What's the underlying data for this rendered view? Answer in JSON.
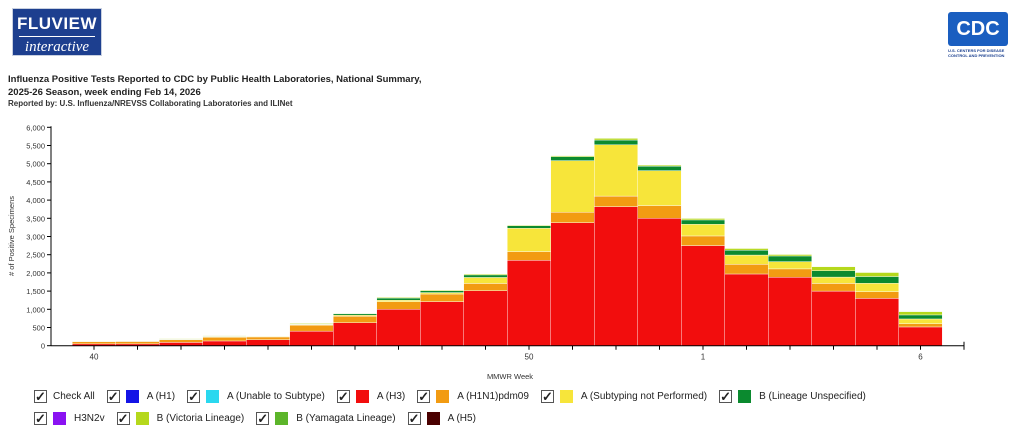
{
  "header": {
    "logo_text": "FLUVIEW interactive",
    "cdc_logo_text": "CDC",
    "cdc_subtext": "U.S. CENTERS FOR DISEASE CONTROL AND PREVENTION",
    "title_line1": "Influenza Positive Tests Reported to CDC by Public Health Laboratories, National Summary,",
    "title_line2": "2025-26 Season, week ending Feb 14, 2026",
    "subtitle": "Reported by: U.S. Influenza/NREVSS Collaborating Laboratories and ILINet"
  },
  "legend": {
    "check_all": "Check All",
    "items": [
      {
        "label": "A (H1)",
        "color": "#1414e6"
      },
      {
        "label": "A (Unable to Subtype)",
        "color": "#2ad8ef"
      },
      {
        "label": "A (H3)",
        "color": "#f20d0d"
      },
      {
        "label": "A (H1N1)pdm09",
        "color": "#f29b12"
      },
      {
        "label": "A (Subtyping not Performed)",
        "color": "#f7e53a"
      },
      {
        "label": "B (Lineage Unspecified)",
        "color": "#0b8a2f"
      },
      {
        "label": "H3N2v",
        "color": "#8a12f2"
      },
      {
        "label": "B (Victoria Lineage)",
        "color": "#b5d81c"
      },
      {
        "label": "B (Yamagata Lineage)",
        "color": "#5cb52a"
      },
      {
        "label": "A (H5)",
        "color": "#4a0000"
      }
    ]
  },
  "chart_data": {
    "type": "bar",
    "stacked": true,
    "xlabel": "MMWR Week",
    "ylabel": "# of Positive Specimens",
    "ylim": [
      0,
      6000
    ],
    "yticks": [
      0,
      500,
      1000,
      1500,
      2000,
      2500,
      3000,
      3500,
      4000,
      4500,
      5000,
      5500,
      6000
    ],
    "ytick_labels": [
      "0",
      "500",
      "1,000",
      "1,500",
      "2,000",
      "2,500",
      "3,000",
      "3,500",
      "4,000",
      "4,500",
      "5,000",
      "5,500",
      "6,000"
    ],
    "xtick_labels_shown": [
      "40",
      "50",
      "1",
      "6"
    ],
    "categories": [
      "40",
      "41",
      "42",
      "43",
      "44",
      "45",
      "46",
      "47",
      "48",
      "49",
      "50",
      "51",
      "52",
      "53",
      "1",
      "2",
      "3",
      "4",
      "5",
      "6"
    ],
    "series": [
      {
        "name": "A (H3)",
        "color": "#f20d0d",
        "values": [
          50,
          50,
          90,
          130,
          165,
          400,
          630,
          1000,
          1210,
          1510,
          2345,
          3380,
          3820,
          3500,
          2750,
          1970,
          1880,
          1500,
          1300,
          515
        ]
      },
      {
        "name": "A (H1N1)pdm09",
        "color": "#f29b12",
        "values": [
          60,
          65,
          75,
          100,
          75,
          165,
          180,
          210,
          210,
          200,
          240,
          285,
          290,
          350,
          265,
          265,
          230,
          210,
          185,
          90
        ]
      },
      {
        "name": "A (Subtyping not Performed)",
        "color": "#f7e53a",
        "values": [
          15,
          10,
          15,
          20,
          15,
          15,
          30,
          40,
          40,
          165,
          640,
          1420,
          1410,
          960,
          320,
          255,
          200,
          175,
          230,
          130
        ]
      },
      {
        "name": "B (Lineage Unspecified)",
        "color": "#0b8a2f",
        "values": [
          5,
          5,
          10,
          10,
          10,
          10,
          40,
          60,
          50,
          70,
          70,
          110,
          130,
          120,
          120,
          135,
          155,
          175,
          185,
          110
        ]
      },
      {
        "name": "B (Victoria Lineage)",
        "color": "#b5d81c",
        "values": [
          10,
          10,
          10,
          15,
          10,
          20,
          10,
          20,
          20,
          25,
          20,
          25,
          45,
          30,
          40,
          45,
          40,
          110,
          110,
          90
        ]
      }
    ],
    "grid": false,
    "legend_position": "bottom"
  }
}
